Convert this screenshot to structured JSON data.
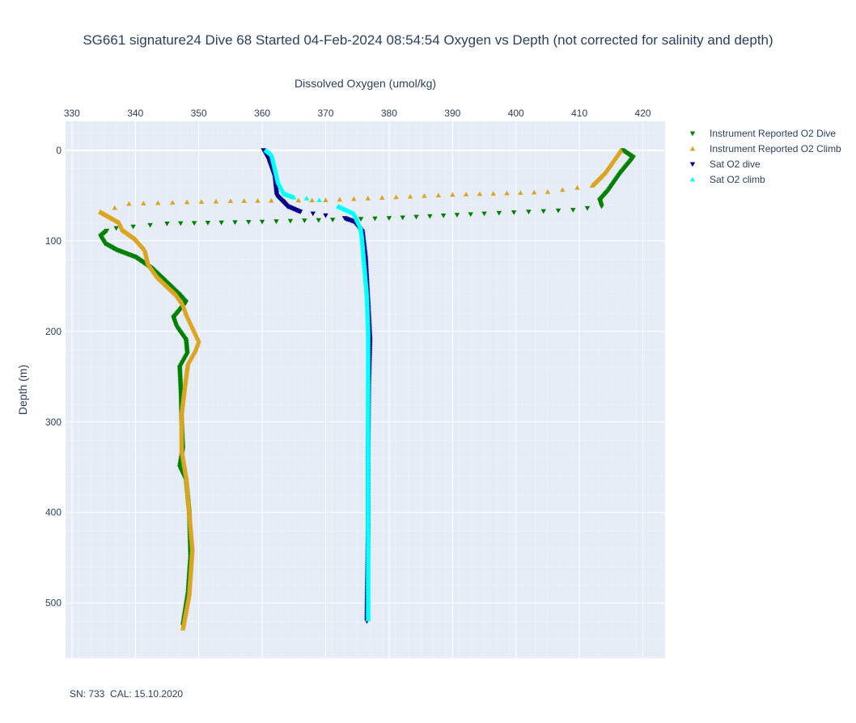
{
  "chart_data": {
    "type": "scatter",
    "title": "SG661 signature24 Dive 68 Started 04-Feb-2024 08:54:54  Oxygen vs Depth (not corrected for salinity and depth)",
    "xlabel": "Dissolved Oxygen (umol/kg)",
    "ylabel": "Depth (m)",
    "x_axis_position": "top",
    "y_axis_reversed": true,
    "xlim": [
      329,
      423.5
    ],
    "ylim": [
      -32,
      561
    ],
    "x_ticks": [
      330,
      340,
      350,
      360,
      370,
      380,
      390,
      400,
      410,
      420
    ],
    "y_ticks": [
      0,
      100,
      200,
      300,
      400,
      500
    ],
    "grid": true,
    "legend_position": "right",
    "footnote": "SN: 733  CAL: 15.10.2020",
    "series": [
      {
        "name": "Instrument Reported O2 Dive",
        "marker": "triangle-down",
        "color": "#008000",
        "profile": [
          [
            416.8,
            0
          ],
          [
            418.5,
            8
          ],
          [
            416.5,
            25
          ],
          [
            414.5,
            45
          ],
          [
            413.2,
            55
          ],
          [
            413.5,
            62
          ],
          [
            409,
            66
          ],
          [
            395,
            70
          ],
          [
            380,
            75
          ],
          [
            360,
            79
          ],
          [
            345,
            81
          ],
          [
            337,
            86
          ],
          [
            335.5,
            89
          ],
          [
            334.5,
            95
          ],
          [
            335.2,
            103
          ],
          [
            337,
            110
          ],
          [
            340,
            118
          ],
          [
            342.5,
            130
          ],
          [
            344,
            140
          ],
          [
            345.5,
            150
          ],
          [
            347,
            160
          ],
          [
            348,
            168
          ],
          [
            347.2,
            175
          ],
          [
            346,
            185
          ],
          [
            346.5,
            195
          ],
          [
            348,
            210
          ],
          [
            348.2,
            225
          ],
          [
            347,
            240
          ],
          [
            347.2,
            270
          ],
          [
            347.3,
            300
          ],
          [
            347.5,
            330
          ],
          [
            347,
            350
          ],
          [
            348,
            365
          ],
          [
            348.5,
            400
          ],
          [
            348.7,
            450
          ],
          [
            348.3,
            490
          ],
          [
            347.5,
            525
          ]
        ]
      },
      {
        "name": "Instrument Reported O2 Climb",
        "marker": "triangle-up",
        "color": "#daa520",
        "profile": [
          [
            347.5,
            528
          ],
          [
            348.5,
            490
          ],
          [
            349,
            440
          ],
          [
            348.5,
            400
          ],
          [
            348,
            360
          ],
          [
            347.3,
            330
          ],
          [
            347.3,
            290
          ],
          [
            348,
            250
          ],
          [
            348.3,
            235
          ],
          [
            349.5,
            220
          ],
          [
            350,
            210
          ],
          [
            349,
            195
          ],
          [
            348,
            180
          ],
          [
            347.5,
            170
          ],
          [
            346.5,
            160
          ],
          [
            345,
            150
          ],
          [
            343.5,
            140
          ],
          [
            342,
            125
          ],
          [
            341.5,
            110
          ],
          [
            340,
            98
          ],
          [
            338,
            88
          ],
          [
            337.5,
            80
          ],
          [
            334.5,
            68
          ],
          [
            339,
            59
          ],
          [
            355,
            56
          ],
          [
            370,
            55
          ],
          [
            390,
            49
          ],
          [
            405,
            46
          ],
          [
            412,
            39
          ],
          [
            414,
            25
          ],
          [
            416.5,
            0
          ]
        ]
      },
      {
        "name": "Sat O2 dive",
        "marker": "triangle-down",
        "color": "#00008b",
        "profile": [
          [
            360.2,
            0
          ],
          [
            361,
            10
          ],
          [
            362,
            30
          ],
          [
            362.3,
            50
          ],
          [
            364,
            62
          ],
          [
            366,
            68
          ],
          [
            370,
            72
          ],
          [
            373,
            75
          ],
          [
            374.5,
            79
          ],
          [
            375.8,
            90
          ],
          [
            376.3,
            120
          ],
          [
            376.7,
            170
          ],
          [
            377,
            210
          ],
          [
            376.8,
            260
          ],
          [
            376.7,
            330
          ],
          [
            376.7,
            420
          ],
          [
            376.5,
            520
          ]
        ]
      },
      {
        "name": "Sat O2 climb",
        "marker": "triangle-up",
        "color": "#00ffff",
        "profile": [
          [
            376.7,
            518
          ],
          [
            376.7,
            440
          ],
          [
            376.7,
            360
          ],
          [
            376.7,
            280
          ],
          [
            376.7,
            200
          ],
          [
            376.5,
            160
          ],
          [
            376,
            120
          ],
          [
            375.7,
            95
          ],
          [
            375.5,
            85
          ],
          [
            374.5,
            70
          ],
          [
            372,
            62
          ],
          [
            369,
            55
          ],
          [
            367,
            53
          ],
          [
            365,
            52
          ],
          [
            363.5,
            48
          ],
          [
            362.5,
            35
          ],
          [
            362,
            20
          ],
          [
            361.5,
            5
          ],
          [
            360.6,
            0
          ]
        ]
      }
    ]
  }
}
